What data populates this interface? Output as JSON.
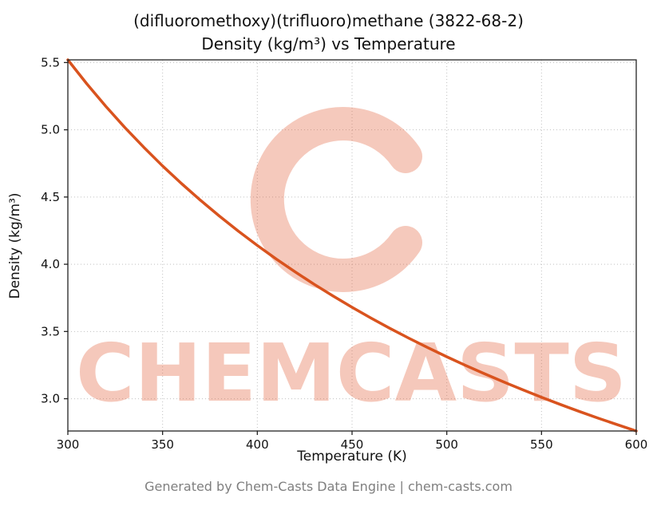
{
  "header": {
    "line1": "(difluoromethoxy)(trifluoro)methane (3822-68-2)",
    "line2": "Density (kg/m³) vs Temperature"
  },
  "footer": {
    "text": "Generated by Chem-Casts Data Engine | chem-casts.com"
  },
  "watermark": {
    "text": "CHEMCASTS",
    "color": "#e1582e",
    "opacity": 0.32
  },
  "chart_data": {
    "type": "line",
    "title": "(difluoromethoxy)(trifluoro)methane (3822-68-2) — Density (kg/m³) vs Temperature",
    "xlabel": "Temperature (K)",
    "ylabel": "Density (kg/m³)",
    "xlim": [
      300,
      600
    ],
    "ylim": [
      2.76,
      5.52
    ],
    "xticks": [
      300,
      350,
      400,
      450,
      500,
      550,
      600
    ],
    "yticks": [
      3.0,
      3.5,
      4.0,
      4.5,
      5.0,
      5.5
    ],
    "grid": true,
    "line_color": "#d9531e",
    "series": [
      {
        "name": "Density",
        "x": [
          300,
          310,
          320,
          330,
          340,
          350,
          360,
          370,
          380,
          390,
          400,
          410,
          420,
          430,
          440,
          450,
          460,
          470,
          480,
          490,
          500,
          510,
          520,
          530,
          540,
          550,
          560,
          570,
          580,
          590,
          600
        ],
        "y": [
          5.52,
          5.342,
          5.175,
          5.018,
          4.871,
          4.731,
          4.6,
          4.476,
          4.358,
          4.246,
          4.14,
          4.039,
          3.943,
          3.851,
          3.764,
          3.68,
          3.6,
          3.523,
          3.45,
          3.38,
          3.312,
          3.247,
          3.185,
          3.125,
          3.067,
          3.011,
          2.957,
          2.905,
          2.855,
          2.807,
          2.76
        ]
      }
    ]
  }
}
